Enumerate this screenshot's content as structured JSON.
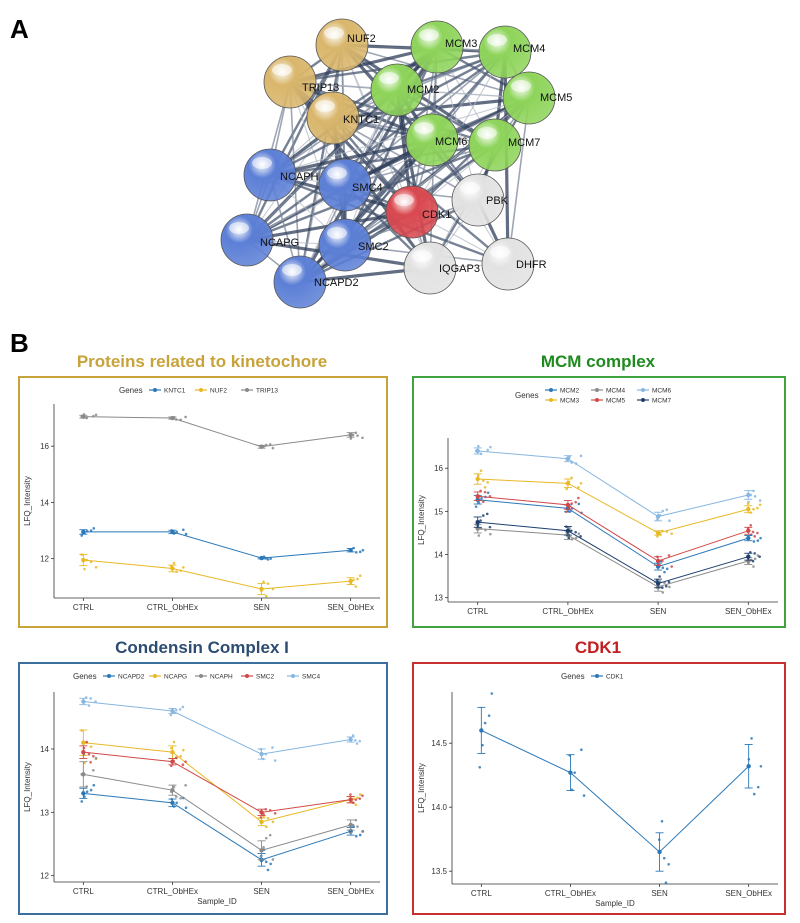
{
  "panel_a_letter": "A",
  "panel_b_letter": "B",
  "network": {
    "nodes": [
      {
        "id": "NUF2",
        "label": "NUF2",
        "color": "#d9b66b"
      },
      {
        "id": "TRIP13",
        "label": "TRIP13",
        "color": "#d9b66b"
      },
      {
        "id": "KNTC1",
        "label": "KNTC1",
        "color": "#d9b66b"
      },
      {
        "id": "MCM3",
        "label": "MCM3",
        "color": "#8ed45a"
      },
      {
        "id": "MCM4",
        "label": "MCM4",
        "color": "#8ed45a"
      },
      {
        "id": "MCM2",
        "label": "MCM2",
        "color": "#8ed45a"
      },
      {
        "id": "MCM5",
        "label": "MCM5",
        "color": "#8ed45a"
      },
      {
        "id": "MCM6",
        "label": "MCM6",
        "color": "#8ed45a"
      },
      {
        "id": "MCM7",
        "label": "MCM7",
        "color": "#8ed45a"
      },
      {
        "id": "NCAPH",
        "label": "NCAPH",
        "color": "#5c7fd6"
      },
      {
        "id": "SMC4",
        "label": "SMC4",
        "color": "#5c7fd6"
      },
      {
        "id": "CDK1",
        "label": "CDK1",
        "color": "#d9484f"
      },
      {
        "id": "PBK",
        "label": "PBK",
        "color": "#e2e2e2"
      },
      {
        "id": "NCAPG",
        "label": "NCAPG",
        "color": "#5c7fd6"
      },
      {
        "id": "SMC2",
        "label": "SMC2",
        "color": "#5c7fd6"
      },
      {
        "id": "IQGAP3",
        "label": "IQGAP3",
        "color": "#e2e2e2"
      },
      {
        "id": "DHFR",
        "label": "DHFR",
        "color": "#e2e2e2"
      },
      {
        "id": "NCAPD2",
        "label": "NCAPD2",
        "color": "#5c7fd6"
      }
    ]
  },
  "chart_data": [
    {
      "id": "kinetochore",
      "type": "line",
      "panel_title": "Proteins related to kinetochore",
      "title_color": "#c8a23a",
      "frame_color": "#c8a23a",
      "legend_title": "Genes",
      "xlabel": "",
      "ylabel": "LFQ_Intensity",
      "categories": [
        "CTRL",
        "CTRL_ObHEx",
        "SEN",
        "SEN_ObHEx"
      ],
      "ylim": [
        10.6,
        17.5
      ],
      "yticks": [
        12,
        14,
        16
      ],
      "legend_cols": 3,
      "series": [
        {
          "name": "KNTC1",
          "color": "#2a78b8",
          "values": [
            12.95,
            12.95,
            12.02,
            12.3
          ],
          "err": [
            0.08,
            0.06,
            0.03,
            0.06
          ]
        },
        {
          "name": "NUF2",
          "color": "#e8b824",
          "values": [
            11.95,
            11.65,
            10.92,
            11.2
          ],
          "err": [
            0.2,
            0.12,
            0.2,
            0.12
          ]
        },
        {
          "name": "TRIP13",
          "color": "#8a8a8a",
          "values": [
            17.05,
            17.0,
            15.98,
            16.4
          ],
          "err": [
            0.05,
            0.04,
            0.05,
            0.08
          ]
        }
      ]
    },
    {
      "id": "mcm",
      "type": "line",
      "panel_title": "MCM complex",
      "title_color": "#1e8b1e",
      "frame_color": "#3fa33f",
      "legend_title": "Genes",
      "xlabel": "",
      "ylabel": "LFQ_Intensity",
      "categories": [
        "CTRL",
        "CTRL_ObHEx",
        "SEN",
        "SEN_ObHEx"
      ],
      "ylim": [
        12.9,
        16.7
      ],
      "yticks": [
        13,
        14,
        15,
        16
      ],
      "legend_cols": 3,
      "series": [
        {
          "name": "MCM2",
          "color": "#2a78b8",
          "values": [
            15.27,
            15.07,
            13.72,
            14.38
          ],
          "err": [
            0.1,
            0.08,
            0.08,
            0.06
          ]
        },
        {
          "name": "MCM4",
          "color": "#8a8a8a",
          "values": [
            14.6,
            14.45,
            13.25,
            13.85
          ],
          "err": [
            0.1,
            0.1,
            0.1,
            0.08
          ]
        },
        {
          "name": "MCM6",
          "color": "#87b6e0",
          "values": [
            16.4,
            16.22,
            14.88,
            15.38
          ],
          "err": [
            0.07,
            0.07,
            0.1,
            0.1
          ]
        },
        {
          "name": "MCM3",
          "color": "#e8b824",
          "values": [
            15.75,
            15.65,
            14.5,
            15.05
          ],
          "err": [
            0.12,
            0.1,
            0.05,
            0.08
          ]
        },
        {
          "name": "MCM5",
          "color": "#d04848",
          "values": [
            15.35,
            15.15,
            13.85,
            14.55
          ],
          "err": [
            0.1,
            0.1,
            0.1,
            0.08
          ]
        },
        {
          "name": "MCM7",
          "color": "#1c3f6e",
          "values": [
            14.75,
            14.55,
            13.33,
            13.95
          ],
          "err": [
            0.12,
            0.1,
            0.1,
            0.08
          ]
        }
      ]
    },
    {
      "id": "condensin",
      "type": "line",
      "panel_title": "Condensin Complex I",
      "title_color": "#2c4c72",
      "frame_color": "#3a6f9e",
      "legend_title": "Genes",
      "xlabel": "Sample_ID",
      "ylabel": "LFQ_Intensity",
      "categories": [
        "CTRL",
        "CTRL_ObHEx",
        "SEN",
        "SEN_ObHEx"
      ],
      "ylim": [
        11.9,
        14.9
      ],
      "yticks": [
        12,
        13,
        14
      ],
      "legend_cols": 5,
      "series": [
        {
          "name": "NCAPD2",
          "color": "#2a78b8",
          "values": [
            13.3,
            13.15,
            12.25,
            12.7
          ],
          "err": [
            0.08,
            0.06,
            0.1,
            0.06
          ]
        },
        {
          "name": "NCAPG",
          "color": "#e8b824",
          "values": [
            14.1,
            13.95,
            12.85,
            13.2
          ],
          "err": [
            0.2,
            0.1,
            0.06,
            0.05
          ]
        },
        {
          "name": "NCAPH",
          "color": "#8a8a8a",
          "values": [
            13.6,
            13.35,
            12.4,
            12.8
          ],
          "err": [
            0.2,
            0.08,
            0.15,
            0.08
          ]
        },
        {
          "name": "SMC2",
          "color": "#d04848",
          "values": [
            13.95,
            13.8,
            13.0,
            13.2
          ],
          "err": [
            0.1,
            0.05,
            0.05,
            0.05
          ]
        },
        {
          "name": "SMC4",
          "color": "#87b6e0",
          "values": [
            14.75,
            14.6,
            13.92,
            14.15
          ],
          "err": [
            0.05,
            0.04,
            0.08,
            0.04
          ]
        }
      ]
    },
    {
      "id": "cdk1",
      "type": "line",
      "panel_title": "CDK1",
      "title_color": "#c02020",
      "frame_color": "#c83030",
      "legend_title": "Genes",
      "xlabel": "Sample_ID",
      "ylabel": "LFQ_Intensity",
      "categories": [
        "CTRL",
        "CTRL_ObHEx",
        "SEN",
        "SEN_ObHEx"
      ],
      "ylim": [
        13.4,
        14.9
      ],
      "yticks": [
        13.5,
        14.0,
        14.5
      ],
      "legend_cols": 1,
      "series": [
        {
          "name": "CDK1",
          "color": "#2a78b8",
          "values": [
            14.6,
            14.27,
            13.65,
            14.32
          ],
          "err": [
            0.18,
            0.14,
            0.15,
            0.17
          ]
        }
      ]
    }
  ]
}
